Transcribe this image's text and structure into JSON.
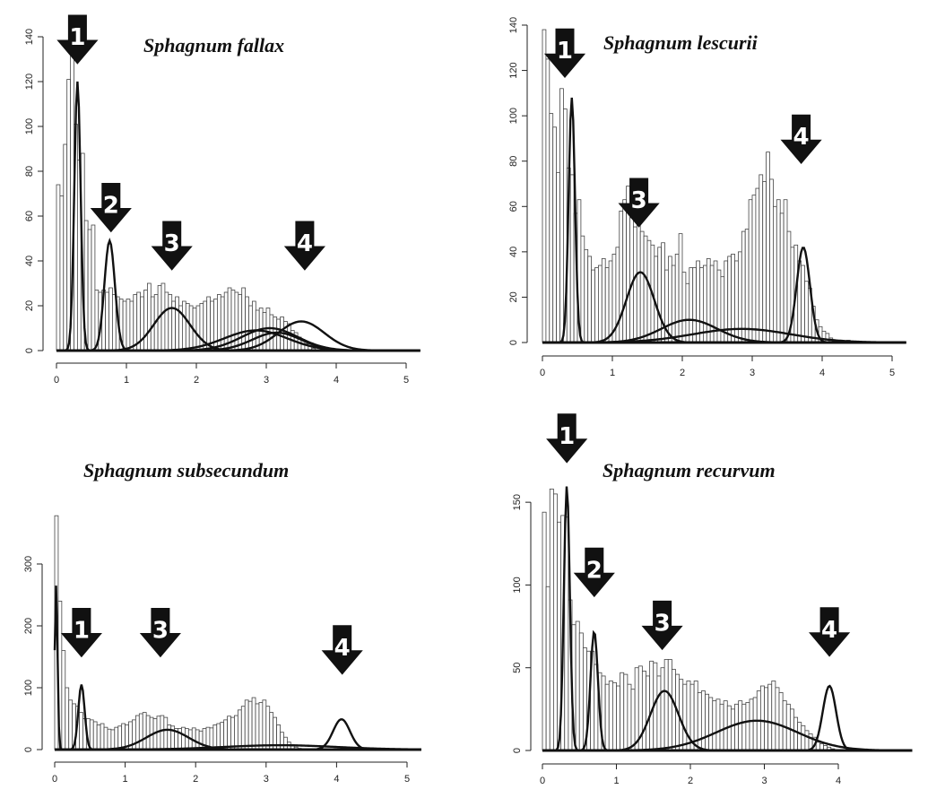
{
  "chart_data": [
    {
      "type": "bar",
      "title": "Sphagnum fallax",
      "xlabel": "",
      "ylabel": "",
      "xlim": [
        0,
        5.2
      ],
      "ylim": [
        0,
        140
      ],
      "xticks": [
        0,
        1,
        2,
        3,
        4,
        5
      ],
      "yticks": [
        0,
        20,
        40,
        60,
        80,
        100,
        120,
        140
      ],
      "bin_width": 0.05,
      "histogram": [
        74,
        69,
        92,
        121,
        132,
        101,
        85,
        88,
        58,
        54,
        56,
        27,
        26,
        27,
        26,
        28,
        25,
        24,
        23,
        22,
        23,
        22,
        25,
        26,
        24,
        27,
        30,
        24,
        25,
        29,
        30,
        26,
        25,
        22,
        24,
        20,
        22,
        21,
        20,
        19,
        20,
        21,
        22,
        24,
        22,
        23,
        25,
        24,
        26,
        28,
        27,
        26,
        25,
        28,
        24,
        20,
        22,
        18,
        19,
        17,
        19,
        16,
        15,
        14,
        15,
        13,
        12,
        9,
        8,
        6,
        5,
        3,
        2,
        1,
        0,
        0,
        1
      ],
      "components": [
        {
          "mean": 0.3,
          "sd": 0.045,
          "peak": 120
        },
        {
          "mean": 0.76,
          "sd": 0.075,
          "peak": 49
        },
        {
          "mean": 1.65,
          "sd": 0.26,
          "peak": 19
        },
        {
          "mean": 2.85,
          "sd": 0.45,
          "peak": 9
        },
        {
          "mean": 3.05,
          "sd": 0.4,
          "peak": 10
        },
        {
          "mean": 3.15,
          "sd": 0.35,
          "peak": 8
        },
        {
          "mean": 3.5,
          "sd": 0.33,
          "peak": 13
        }
      ],
      "markers": [
        {
          "label": "1",
          "x": 0.3,
          "y": 128
        },
        {
          "label": "2",
          "x": 0.78,
          "y": 53
        },
        {
          "label": "3",
          "x": 1.65,
          "y": 36
        },
        {
          "label": "4",
          "x": 3.55,
          "y": 36
        }
      ]
    },
    {
      "type": "bar",
      "title": "Sphagnum lescurii",
      "xlabel": "",
      "ylabel": "",
      "xlim": [
        0,
        5.2
      ],
      "ylim": [
        0,
        140
      ],
      "xticks": [
        0,
        1,
        2,
        3,
        4,
        5
      ],
      "yticks": [
        0,
        20,
        40,
        60,
        80,
        100,
        120,
        140
      ],
      "bin_width": 0.05,
      "histogram": [
        138,
        125,
        101,
        95,
        75,
        112,
        103,
        77,
        74,
        57,
        63,
        47,
        41,
        38,
        32,
        33,
        34,
        37,
        33,
        36,
        39,
        42,
        58,
        63,
        69,
        55,
        51,
        53,
        49,
        47,
        45,
        43,
        38,
        42,
        44,
        32,
        38,
        34,
        39,
        48,
        31,
        26,
        33,
        33,
        36,
        33,
        34,
        37,
        34,
        36,
        32,
        29,
        36,
        38,
        39,
        36,
        40,
        49,
        50,
        63,
        65,
        68,
        74,
        71,
        84,
        72,
        60,
        63,
        57,
        63,
        49,
        42,
        43,
        36,
        34,
        27,
        24,
        16,
        10,
        7,
        5,
        4,
        2,
        1,
        0,
        0,
        0,
        1
      ],
      "components": [
        {
          "mean": 0.42,
          "sd": 0.045,
          "peak": 108
        },
        {
          "mean": 1.4,
          "sd": 0.2,
          "peak": 31
        },
        {
          "mean": 2.1,
          "sd": 0.4,
          "peak": 10
        },
        {
          "mean": 2.85,
          "sd": 0.7,
          "peak": 6
        },
        {
          "mean": 3.73,
          "sd": 0.095,
          "peak": 42
        }
      ],
      "markers": [
        {
          "label": "1",
          "x": 0.32,
          "y": 117
        },
        {
          "label": "3",
          "x": 1.38,
          "y": 51
        },
        {
          "label": "4",
          "x": 3.7,
          "y": 79
        }
      ]
    },
    {
      "type": "bar",
      "title": "Sphagnum subsecundum",
      "xlabel": "",
      "ylabel": "",
      "xlim": [
        0,
        5.2
      ],
      "ylim": [
        0,
        400
      ],
      "xticks": [
        0,
        1,
        2,
        3,
        4,
        5
      ],
      "yticks": [
        0,
        100,
        200,
        300
      ],
      "bin_width": 0.05,
      "histogram": [
        378,
        240,
        160,
        100,
        80,
        74,
        70,
        60,
        50,
        50,
        48,
        45,
        40,
        42,
        36,
        33,
        32,
        36,
        38,
        42,
        40,
        45,
        48,
        55,
        58,
        60,
        55,
        52,
        50,
        54,
        55,
        52,
        40,
        38,
        34,
        34,
        36,
        34,
        32,
        35,
        32,
        30,
        34,
        36,
        35,
        40,
        42,
        44,
        48,
        54,
        52,
        55,
        64,
        70,
        80,
        78,
        84,
        74,
        76,
        80,
        70,
        60,
        52,
        40,
        28,
        20,
        12,
        8,
        4,
        2
      ],
      "components": [
        {
          "mean": 0.02,
          "sd": 0.02,
          "peak": 265
        },
        {
          "mean": 0.38,
          "sd": 0.045,
          "peak": 105
        },
        {
          "mean": 1.6,
          "sd": 0.3,
          "peak": 32
        },
        {
          "mean": 3.2,
          "sd": 0.8,
          "peak": 7
        },
        {
          "mean": 4.07,
          "sd": 0.12,
          "peak": 49
        }
      ],
      "markers": [
        {
          "label": "1",
          "x": 0.38,
          "y": 150
        },
        {
          "label": "3",
          "x": 1.5,
          "y": 150
        },
        {
          "label": "4",
          "x": 4.08,
          "y": 122
        }
      ]
    },
    {
      "type": "bar",
      "title": "Sphagnum recurvum",
      "xlabel": "",
      "ylabel": "",
      "xlim": [
        0,
        5
      ],
      "ylim": [
        0,
        175
      ],
      "xticks": [
        0,
        1,
        2,
        3,
        4
      ],
      "yticks": [
        0,
        50,
        100,
        150
      ],
      "bin_width": 0.05,
      "histogram": [
        144,
        99,
        158,
        155,
        138,
        142,
        141,
        91,
        76,
        78,
        71,
        62,
        60,
        60,
        52,
        47,
        45,
        40,
        42,
        41,
        39,
        47,
        46,
        40,
        37,
        50,
        51,
        48,
        45,
        54,
        53,
        45,
        50,
        55,
        55,
        49,
        46,
        43,
        40,
        42,
        40,
        42,
        35,
        36,
        34,
        32,
        30,
        31,
        28,
        30,
        27,
        25,
        28,
        30,
        28,
        29,
        31,
        32,
        36,
        39,
        38,
        40,
        42,
        38,
        35,
        30,
        28,
        25,
        20,
        17,
        15,
        12,
        10,
        8,
        5,
        4,
        3,
        2,
        1,
        0
      ],
      "components": [
        {
          "mean": 0.33,
          "sd": 0.04,
          "peak": 160
        },
        {
          "mean": 0.7,
          "sd": 0.05,
          "peak": 72
        },
        {
          "mean": 1.65,
          "sd": 0.19,
          "peak": 36
        },
        {
          "mean": 2.9,
          "sd": 0.55,
          "peak": 18
        },
        {
          "mean": 3.88,
          "sd": 0.09,
          "peak": 39
        }
      ],
      "markers": [
        {
          "label": "1",
          "x": 0.33,
          "y": 174
        },
        {
          "label": "2",
          "x": 0.7,
          "y": 93
        },
        {
          "label": "3",
          "x": 1.62,
          "y": 61
        },
        {
          "label": "4",
          "x": 3.88,
          "y": 57
        }
      ]
    }
  ]
}
